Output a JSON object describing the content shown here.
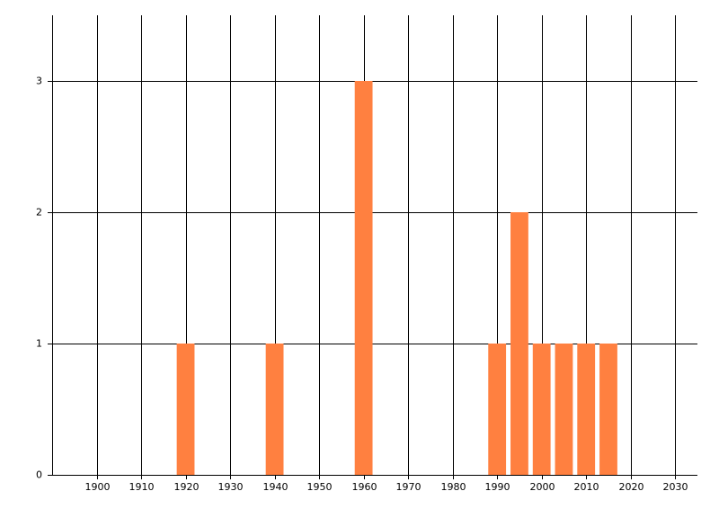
{
  "chart_data": {
    "type": "bar",
    "x": [
      1920,
      1940,
      1960,
      1990,
      1995,
      2000,
      2005,
      2010,
      2015
    ],
    "values": [
      1,
      1,
      3,
      1,
      2,
      1,
      1,
      1,
      1
    ],
    "color": "#ff8040",
    "xlim": [
      1890,
      2035
    ],
    "xticks": [
      1900,
      1910,
      1920,
      1930,
      1940,
      1950,
      1960,
      1970,
      1980,
      1990,
      2000,
      2010,
      2020,
      2030
    ],
    "ylim": [
      0,
      3.5
    ],
    "yticks": [
      0,
      1,
      2,
      3
    ],
    "grid": true
  }
}
